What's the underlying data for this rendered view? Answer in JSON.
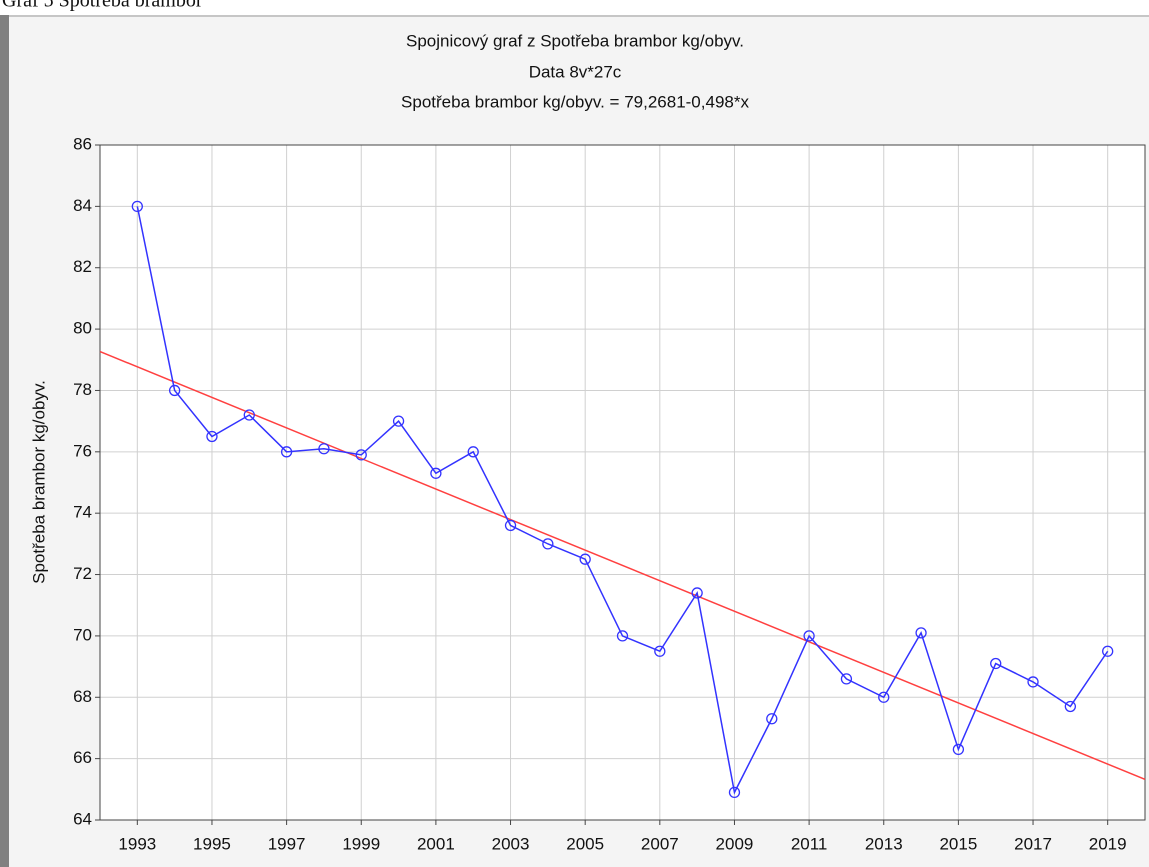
{
  "caption": "Graf 5 Spotřeba brambor",
  "chart_data": {
    "type": "line",
    "title": "Spojnicový graf z Spotřeba brambor kg/obyv.",
    "subtitle": "Data 8v*27c",
    "equation": "Spotřeba brambor kg/obyv. = 79,2681-0,498*x",
    "y_label": "Spotřeba brambor kg/obyv.",
    "x": [
      1993,
      1994,
      1995,
      1996,
      1997,
      1998,
      1999,
      2000,
      2001,
      2002,
      2003,
      2004,
      2005,
      2006,
      2007,
      2008,
      2009,
      2010,
      2011,
      2012,
      2013,
      2014,
      2015,
      2016,
      2017,
      2018,
      2019
    ],
    "series": [
      {
        "color": "#3333ff",
        "values": [
          84.0,
          78.0,
          76.5,
          77.2,
          76.0,
          76.1,
          75.9,
          77.0,
          75.3,
          76.0,
          73.6,
          73.0,
          72.5,
          70.0,
          69.5,
          71.4,
          64.9,
          67.3,
          70.0,
          68.6,
          68.0,
          70.1,
          66.3,
          69.1,
          68.5,
          67.7,
          69.5
        ]
      }
    ],
    "trend": {
      "color": "#ff4040",
      "x": [
        1992,
        2020
      ],
      "values": [
        79.2681,
        65.3241
      ]
    },
    "xlim": [
      1992,
      2020
    ],
    "xticks": [
      1993,
      1995,
      1997,
      1999,
      2001,
      2003,
      2005,
      2007,
      2009,
      2011,
      2013,
      2015,
      2017,
      2019
    ],
    "ylim": [
      64,
      86
    ],
    "yticks": [
      64,
      66,
      68,
      70,
      72,
      74,
      76,
      78,
      80,
      82,
      84,
      86
    ],
    "grid": true
  }
}
